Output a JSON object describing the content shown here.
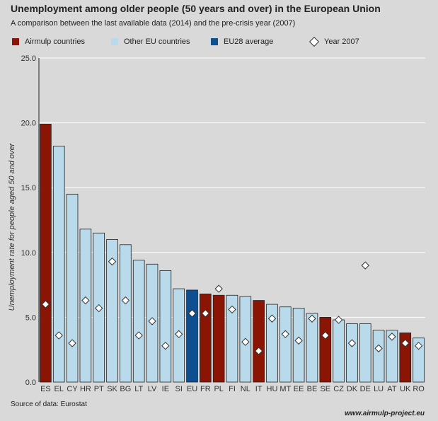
{
  "header": {
    "title": "Unemployment among older people (50 years and over) in the European Union",
    "subtitle": "A comparison between the last available data (2014) and the pre-crisis year (2007)"
  },
  "legend": [
    {
      "label": "Airmulp countries",
      "color": "#8b1505",
      "kind": "swatch"
    },
    {
      "label": "Other EU countries",
      "color": "#b8daea",
      "kind": "swatch"
    },
    {
      "label": "EU28 average",
      "color": "#0d4f8f",
      "kind": "swatch"
    },
    {
      "label": "Year 2007",
      "color": "#ffffff",
      "kind": "diamond"
    }
  ],
  "footer": {
    "source": "Source of data: Eurostat",
    "site": "www.airmulp-project.eu"
  },
  "colors": {
    "airmulp": "#8b1505",
    "other": "#b8daea",
    "eu": "#0d4f8f",
    "grid": "#ffffff",
    "bar_border": "#222222"
  },
  "chart_data": {
    "type": "bar",
    "ylabel": "Unemployment rate for people aged 50 and over",
    "ylim": [
      0,
      25
    ],
    "yticks": [
      "0.0",
      "5.0",
      "10.0",
      "15.0",
      "20.0",
      "25.0"
    ],
    "grid": true,
    "categories": [
      "ES",
      "EL",
      "CY",
      "HR",
      "PT",
      "SK",
      "BG",
      "LT",
      "LV",
      "IE",
      "SI",
      "EU",
      "FR",
      "PL",
      "FI",
      "NL",
      "IT",
      "HU",
      "MT",
      "EE",
      "BE",
      "SE",
      "CZ",
      "DK",
      "DE",
      "LU",
      "AT",
      "UK",
      "RO"
    ],
    "groups": [
      "airmulp",
      "other",
      "other",
      "other",
      "other",
      "other",
      "other",
      "other",
      "other",
      "other",
      "other",
      "eu",
      "airmulp",
      "airmulp",
      "other",
      "other",
      "airmulp",
      "other",
      "other",
      "other",
      "other",
      "airmulp",
      "other",
      "other",
      "other",
      "other",
      "other",
      "airmulp",
      "other"
    ],
    "series": [
      {
        "name": "2014",
        "values": [
          19.9,
          18.2,
          14.5,
          11.8,
          11.5,
          11.0,
          10.6,
          9.4,
          9.1,
          8.6,
          7.2,
          7.1,
          6.8,
          6.7,
          6.7,
          6.6,
          6.3,
          6.0,
          5.8,
          5.7,
          5.3,
          5.0,
          4.8,
          4.5,
          4.5,
          4.0,
          4.0,
          3.8,
          3.4
        ]
      },
      {
        "name": "Year 2007",
        "values": [
          6.0,
          3.6,
          3.0,
          6.3,
          5.7,
          9.3,
          6.3,
          3.6,
          4.7,
          2.8,
          3.7,
          5.3,
          5.3,
          7.2,
          5.6,
          3.1,
          2.4,
          4.9,
          3.7,
          3.2,
          4.9,
          3.6,
          4.8,
          3.0,
          9.0,
          2.6,
          3.5,
          3.0,
          2.8
        ]
      }
    ]
  }
}
